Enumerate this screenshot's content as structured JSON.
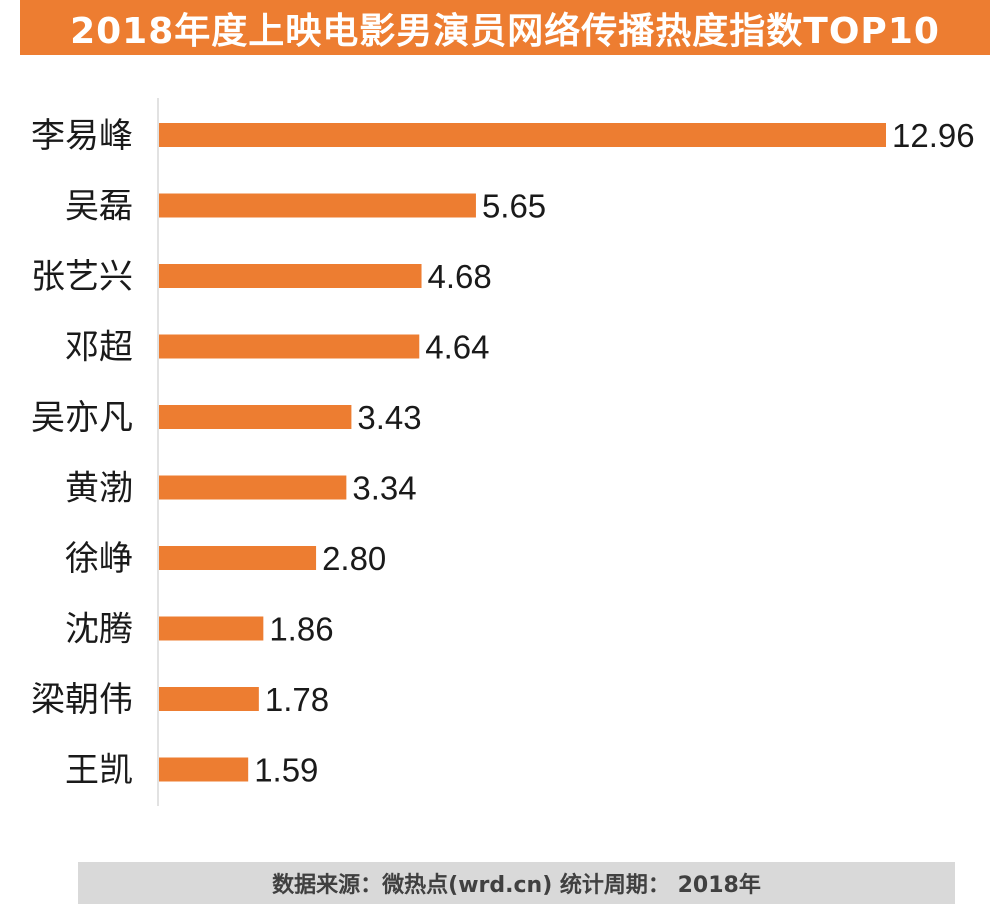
{
  "header": {
    "title": "2018年度上映电影男演员网络传播热度指数TOP10"
  },
  "chart_data": {
    "type": "bar",
    "orientation": "horizontal",
    "title": "2018年度上映电影男演员网络传播热度指数TOP10",
    "categories": [
      "李易峰",
      "吴磊",
      "张艺兴",
      "邓超",
      "吴亦凡",
      "黄渤",
      "徐峥",
      "沈腾",
      "梁朝伟",
      "王凯"
    ],
    "values": [
      12.96,
      5.65,
      4.68,
      4.64,
      3.43,
      3.34,
      2.8,
      1.86,
      1.78,
      1.59
    ],
    "value_labels": [
      "12.96",
      "5.65",
      "4.68",
      "4.64",
      "3.43",
      "3.34",
      "2.80",
      "1.86",
      "1.78",
      "1.59"
    ],
    "xlabel": "",
    "ylabel": "",
    "xlim": [
      0,
      13
    ],
    "grid": false,
    "legend": "none",
    "bar_color": "#ED7D31",
    "axis_color": "#D9D9D9"
  },
  "footer": {
    "source": "数据来源：微热点(wrd.cn)  统计周期： 2018年"
  },
  "colors": {
    "accent": "#ED7D31",
    "footer_bg": "#D9D9D9",
    "text": "#1a1a1a"
  }
}
